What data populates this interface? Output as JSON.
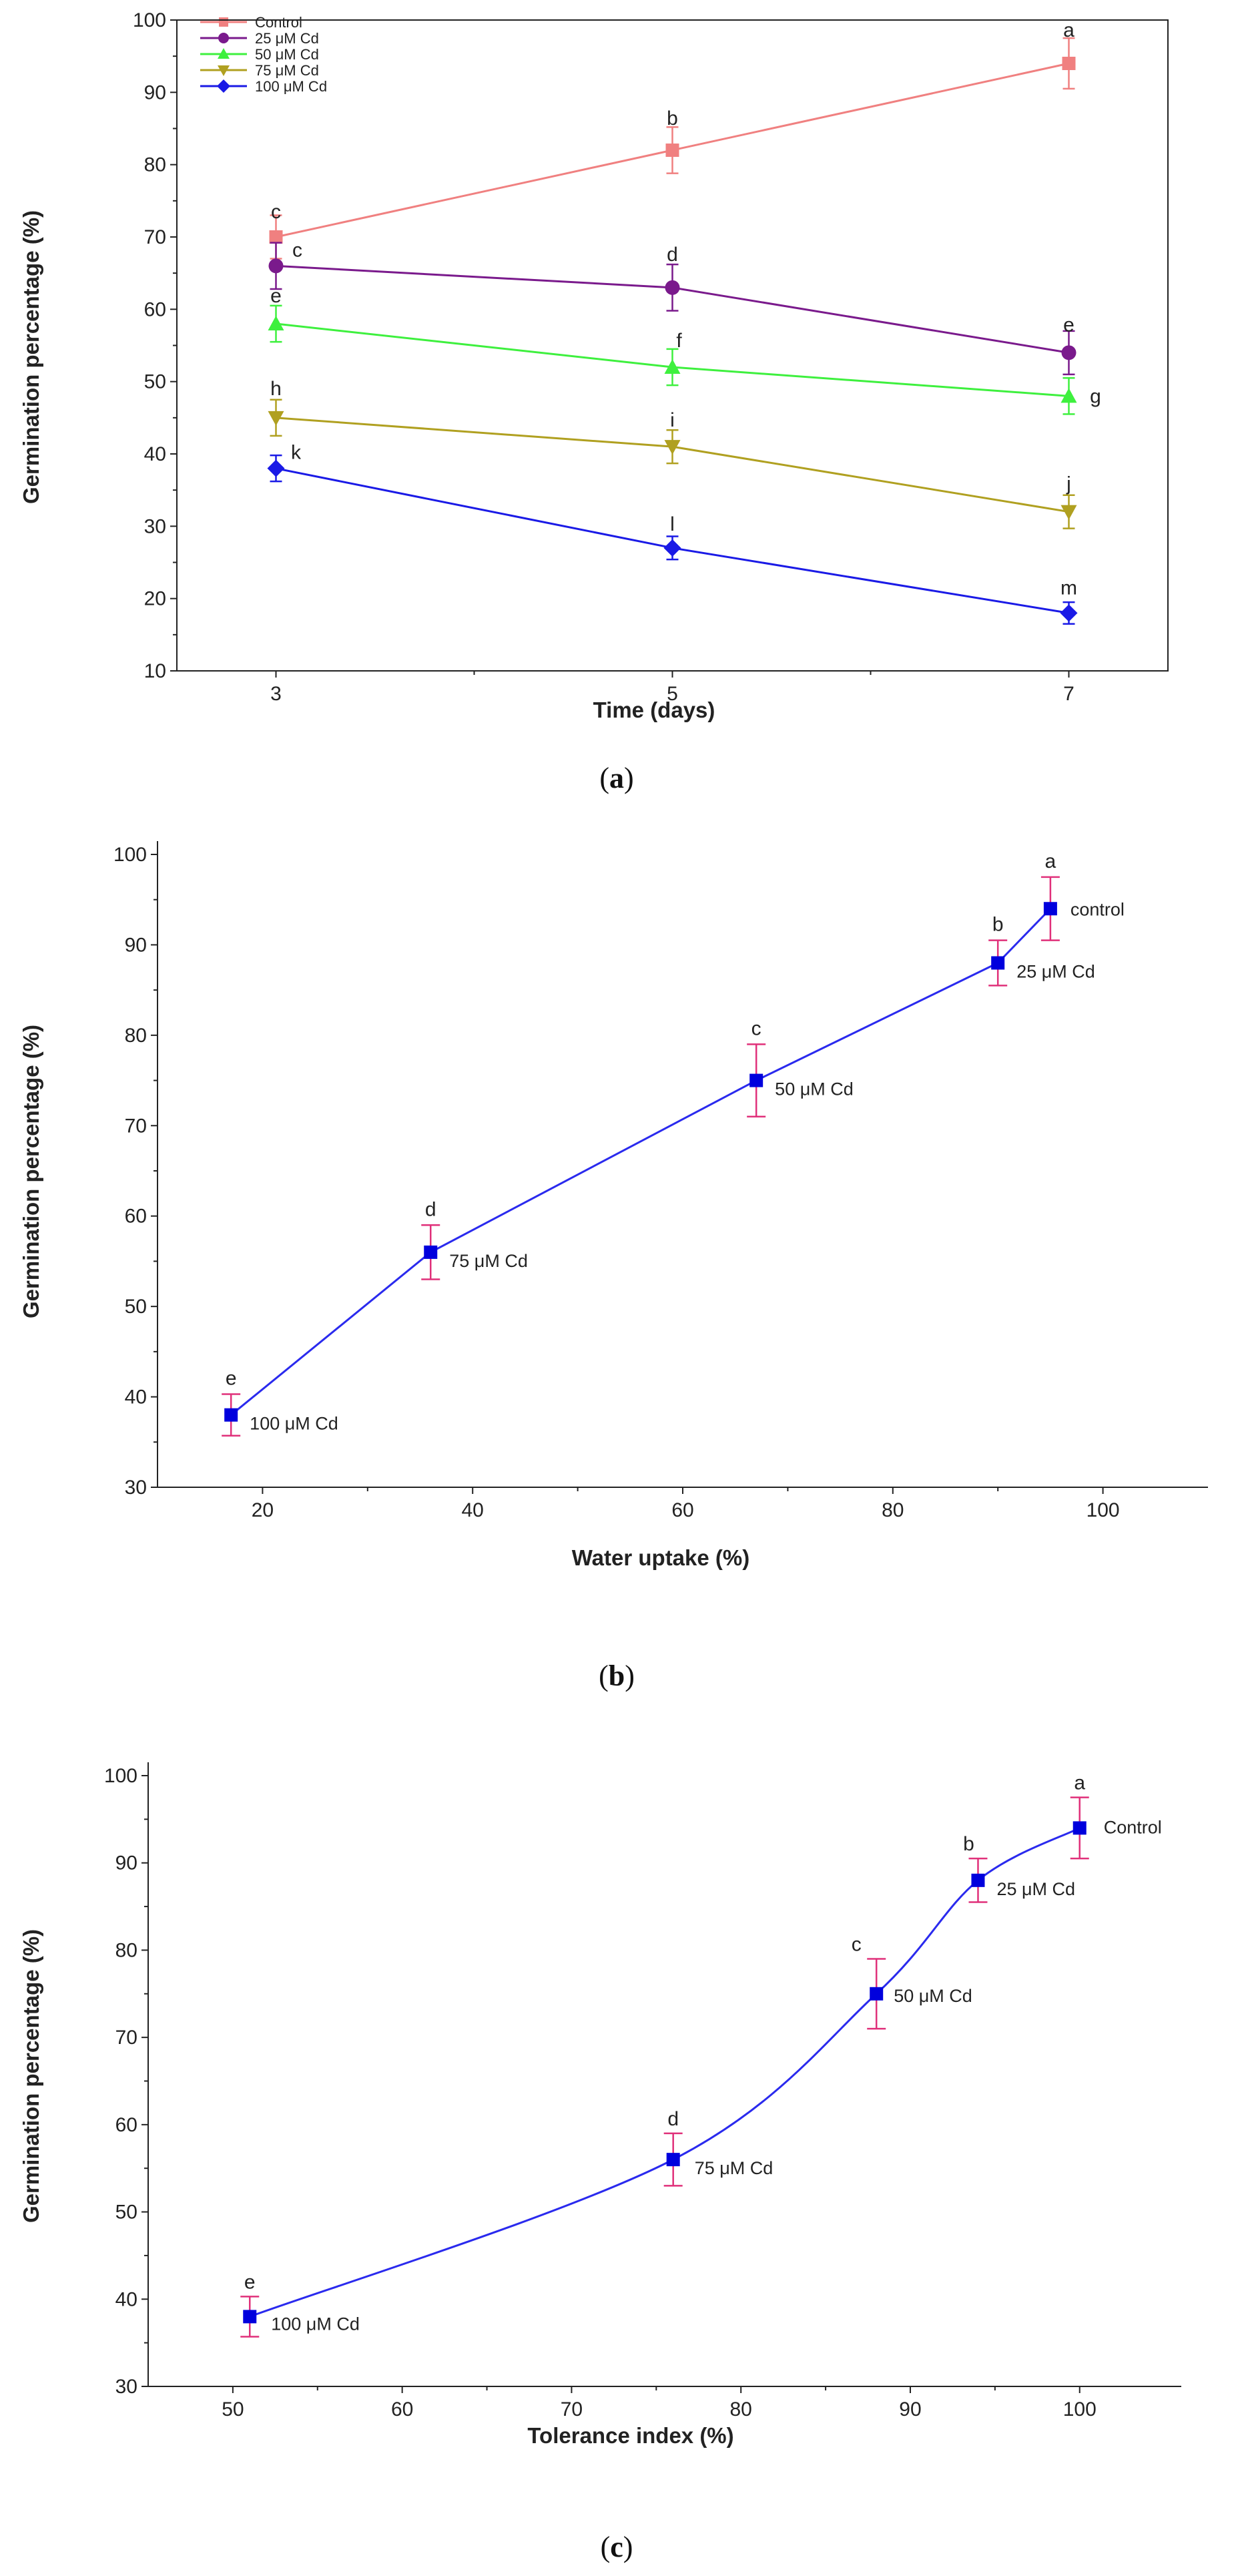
{
  "chart_data": [
    {
      "type": "line",
      "panel": "a",
      "x": [
        3,
        5,
        7
      ],
      "series": [
        {
          "name": "Control",
          "color": "#f08080",
          "marker": "square",
          "values": [
            70,
            82,
            94
          ],
          "errors": [
            3,
            3.2,
            3.5
          ],
          "sig": [
            "c",
            "b",
            "a"
          ]
        },
        {
          "name": "25 μM Cd",
          "color": "#7a1a8c",
          "marker": "circle",
          "values": [
            66,
            63,
            54
          ],
          "errors": [
            3.2,
            3.2,
            3
          ],
          "sig": [
            "c",
            "d",
            "e"
          ]
        },
        {
          "name": "50 μM Cd",
          "color": "#3ef03e",
          "marker": "triangle-up",
          "values": [
            58,
            52,
            48
          ],
          "errors": [
            2.5,
            2.5,
            2.5
          ],
          "sig": [
            "e",
            "f",
            "g"
          ]
        },
        {
          "name": "75 μM Cd",
          "color": "#b0a020",
          "marker": "triangle-down",
          "values": [
            45,
            41,
            32
          ],
          "errors": [
            2.5,
            2.3,
            2.3
          ],
          "sig": [
            "h",
            "i",
            "j"
          ]
        },
        {
          "name": "100 μM Cd",
          "color": "#1a1ae6",
          "marker": "diamond",
          "values": [
            38,
            27,
            18
          ],
          "errors": [
            1.8,
            1.6,
            1.5
          ],
          "sig": [
            "k",
            "l",
            "m"
          ]
        }
      ],
      "xlabel": "Time (days)",
      "ylabel": "Germination percentage (%)",
      "xlim": [
        2.5,
        7.5
      ],
      "ylim": [
        10,
        100
      ],
      "xticks": [
        3,
        5,
        7
      ],
      "yticks": [
        10,
        20,
        30,
        40,
        50,
        60,
        70,
        80,
        90,
        100
      ],
      "legend": "top-left",
      "caption": "a"
    },
    {
      "type": "line",
      "panel": "b",
      "x": [
        17,
        36,
        67,
        90,
        95
      ],
      "values": [
        38,
        56,
        75,
        88,
        94
      ],
      "errors": [
        2.3,
        3,
        4,
        2.5,
        3.5
      ],
      "sig": [
        "e",
        "d",
        "c",
        "b",
        "a"
      ],
      "point_labels": [
        "100 μM Cd",
        "75 μM Cd",
        "50 μM Cd",
        "25 μM Cd",
        "control"
      ],
      "line_color": "#2a2aee",
      "marker_color": "#0000dd",
      "error_color": "#e0307a",
      "xlabel": "Water uptake (%)",
      "ylabel": "Germination percentage (%)",
      "xlim": [
        10,
        110
      ],
      "ylim": [
        30,
        100
      ],
      "xticks": [
        20,
        40,
        60,
        80,
        100
      ],
      "yticks": [
        30,
        40,
        50,
        60,
        70,
        80,
        90,
        100
      ],
      "caption": "b"
    },
    {
      "type": "line",
      "panel": "c",
      "x": [
        51,
        76,
        88,
        94,
        100
      ],
      "values": [
        38,
        56,
        75,
        88,
        94
      ],
      "errors": [
        2.3,
        3,
        4,
        2.5,
        3.5
      ],
      "sig": [
        "e",
        "d",
        "c",
        "b",
        "a"
      ],
      "point_labels": [
        "100 μM Cd",
        "75 μM Cd",
        "50 μM Cd",
        "25 μM Cd",
        "Control"
      ],
      "line_color": "#2a2aee",
      "marker_color": "#0000dd",
      "error_color": "#e0307a",
      "xlabel": "Tolerance index (%)",
      "ylabel": "Germination percentage (%)",
      "xlim": [
        45,
        106
      ],
      "ylim": [
        30,
        100
      ],
      "xticks": [
        50,
        60,
        70,
        80,
        90,
        100
      ],
      "yticks": [
        30,
        40,
        50,
        60,
        70,
        80,
        90,
        100
      ],
      "caption": "c"
    }
  ]
}
